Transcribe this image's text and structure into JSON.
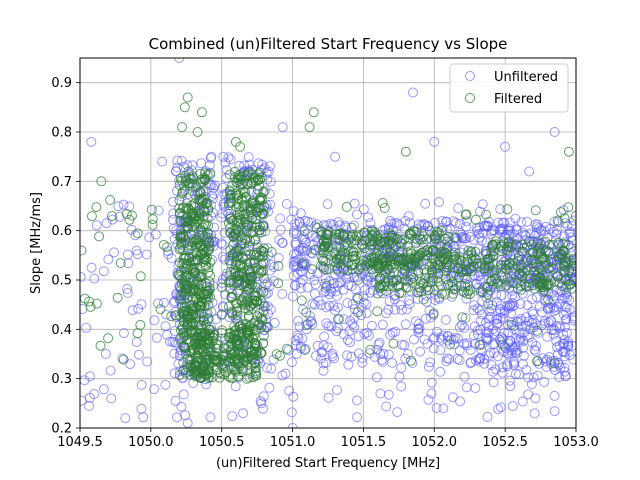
{
  "chart_data": {
    "type": "scatter",
    "title": "Combined (un)Filtered Start Frequency vs Slope",
    "xlabel": "(un)Filtered Start Frequency [MHz]",
    "ylabel": "Slope [MHz/ms]",
    "xlim": [
      1049.5,
      1053.0
    ],
    "ylim": [
      0.2,
      0.95
    ],
    "xticks": [
      "1049.5",
      "1050.0",
      "1050.5",
      "1051.0",
      "1051.5",
      "1052.0",
      "1052.5",
      "1053.0"
    ],
    "xtick_values": [
      1049.5,
      1050.0,
      1050.5,
      1051.0,
      1051.5,
      1052.0,
      1052.5,
      1053.0
    ],
    "yticks": [
      "0.2",
      "0.3",
      "0.4",
      "0.5",
      "0.6",
      "0.7",
      "0.8",
      "0.9"
    ],
    "ytick_values": [
      0.2,
      0.3,
      0.4,
      0.5,
      0.6,
      0.7,
      0.8,
      0.9
    ],
    "grid": true,
    "marker": "hollow-circle",
    "legend": {
      "placement": "top-right"
    },
    "series": [
      {
        "name": "Unfiltered",
        "color": "#5555ff",
        "clusters": [
          {
            "x_range": [
              1049.5,
              1053.0
            ],
            "y_range": [
              0.22,
              0.66
            ],
            "count": 360
          },
          {
            "x_range": [
              1050.15,
              1050.45
            ],
            "y_range": [
              0.3,
              0.75
            ],
            "count": 180
          },
          {
            "x_range": [
              1050.5,
              1050.85
            ],
            "y_range": [
              0.32,
              0.75
            ],
            "count": 160
          },
          {
            "x_range": [
              1051.0,
              1053.0
            ],
            "y_range": [
              0.5,
              0.62
            ],
            "count": 420
          },
          {
            "x_range": [
              1051.0,
              1053.0
            ],
            "y_range": [
              0.33,
              0.5
            ],
            "count": 260
          },
          {
            "x_range": [
              1052.3,
              1053.0
            ],
            "y_range": [
              0.3,
              0.62
            ],
            "count": 220
          }
        ],
        "points": [
          {
            "x": 1049.58,
            "y": 0.78
          },
          {
            "x": 1049.72,
            "y": 0.26
          },
          {
            "x": 1049.82,
            "y": 0.22
          },
          {
            "x": 1050.08,
            "y": 0.74
          },
          {
            "x": 1050.2,
            "y": 0.95
          },
          {
            "x": 1050.26,
            "y": 0.21
          },
          {
            "x": 1050.65,
            "y": 0.23
          },
          {
            "x": 1050.78,
            "y": 0.25
          },
          {
            "x": 1050.93,
            "y": 0.81
          },
          {
            "x": 1051.0,
            "y": 0.2
          },
          {
            "x": 1051.3,
            "y": 0.75
          },
          {
            "x": 1051.62,
            "y": 0.27
          },
          {
            "x": 1051.85,
            "y": 0.88
          },
          {
            "x": 1051.98,
            "y": 0.27
          },
          {
            "x": 1052.0,
            "y": 0.78
          },
          {
            "x": 1052.5,
            "y": 0.77
          },
          {
            "x": 1052.67,
            "y": 0.72
          },
          {
            "x": 1052.85,
            "y": 0.8
          }
        ]
      },
      {
        "name": "Filtered",
        "color": "#2e7d32",
        "clusters": [
          {
            "x_range": [
              1050.2,
              1050.42
            ],
            "y_range": [
              0.3,
              0.72
            ],
            "count": 380
          },
          {
            "x_range": [
              1050.55,
              1050.8
            ],
            "y_range": [
              0.33,
              0.72
            ],
            "count": 320
          },
          {
            "x_range": [
              1050.3,
              1050.75
            ],
            "y_range": [
              0.3,
              0.4
            ],
            "count": 160
          },
          {
            "x_range": [
              1051.2,
              1052.1
            ],
            "y_range": [
              0.52,
              0.6
            ],
            "count": 200
          },
          {
            "x_range": [
              1051.6,
              1052.4
            ],
            "y_range": [
              0.47,
              0.56
            ],
            "count": 160
          },
          {
            "x_range": [
              1052.4,
              1053.0
            ],
            "y_range": [
              0.48,
              0.58
            ],
            "count": 140
          },
          {
            "x_range": [
              1049.5,
              1053.0
            ],
            "y_range": [
              0.33,
              0.68
            ],
            "count": 140
          }
        ],
        "points": [
          {
            "x": 1050.22,
            "y": 0.81
          },
          {
            "x": 1050.24,
            "y": 0.85
          },
          {
            "x": 1050.26,
            "y": 0.87
          },
          {
            "x": 1050.33,
            "y": 0.8
          },
          {
            "x": 1050.36,
            "y": 0.84
          },
          {
            "x": 1050.6,
            "y": 0.78
          },
          {
            "x": 1050.63,
            "y": 0.77
          },
          {
            "x": 1051.12,
            "y": 0.81
          },
          {
            "x": 1051.15,
            "y": 0.84
          },
          {
            "x": 1051.8,
            "y": 0.76
          },
          {
            "x": 1052.95,
            "y": 0.76
          },
          {
            "x": 1049.65,
            "y": 0.7
          }
        ]
      }
    ]
  }
}
